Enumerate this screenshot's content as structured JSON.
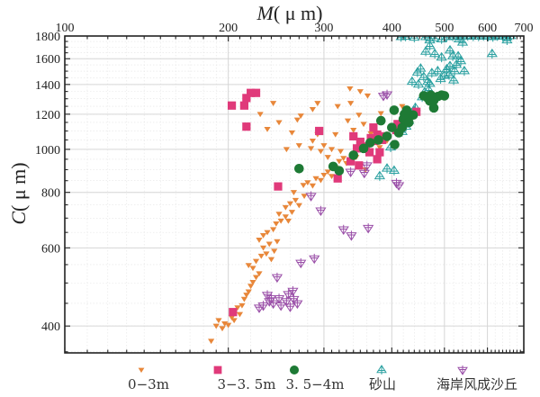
{
  "chart_data": {
    "type": "scatter",
    "title": "",
    "xlabel_italic": "M",
    "xlabel_unit": "( μ m)",
    "ylabel_italic": "C",
    "ylabel_unit": "( μ m)",
    "x_scale": "log",
    "y_scale": "log",
    "xlim": [
      100,
      700
    ],
    "ylim": [
      348,
      1800
    ],
    "x_ticks": [
      100,
      200,
      300,
      400,
      500,
      600,
      700
    ],
    "x_tick_labels": [
      "100",
      "200",
      "300",
      "400",
      "500",
      "600",
      "700"
    ],
    "y_ticks": [
      400,
      600,
      800,
      1000,
      1200,
      1400,
      1600,
      1800
    ],
    "y_tick_labels": [
      "400",
      "600",
      "800",
      "1000",
      "1200",
      "1400",
      "1600",
      "1800"
    ],
    "x_axis_position": "top",
    "grid": true,
    "legend_position": "bottom",
    "series": [
      {
        "name": "0-3m",
        "marker": "triangle-down",
        "color": "#e8873a",
        "points": [
          [
            186,
            370
          ],
          [
            190,
            400
          ],
          [
            192,
            412
          ],
          [
            195,
            395
          ],
          [
            197,
            405
          ],
          [
            200,
            402
          ],
          [
            203,
            418
          ],
          [
            205,
            412
          ],
          [
            210,
            425
          ],
          [
            208,
            440
          ],
          [
            212,
            445
          ],
          [
            214,
            460
          ],
          [
            216,
            470
          ],
          [
            218,
            478
          ],
          [
            220,
            492
          ],
          [
            222,
            502
          ],
          [
            225,
            515
          ],
          [
            228,
            525
          ],
          [
            222,
            540
          ],
          [
            218,
            548
          ],
          [
            225,
            560
          ],
          [
            230,
            575
          ],
          [
            235,
            582
          ],
          [
            240,
            565
          ],
          [
            232,
            600
          ],
          [
            238,
            612
          ],
          [
            243,
            590
          ],
          [
            246,
            620
          ],
          [
            228,
            625
          ],
          [
            232,
            640
          ],
          [
            236,
            650
          ],
          [
            242,
            660
          ],
          [
            245,
            680
          ],
          [
            250,
            690
          ],
          [
            255,
            705
          ],
          [
            258,
            690
          ],
          [
            248,
            715
          ],
          [
            262,
            722
          ],
          [
            255,
            740
          ],
          [
            260,
            755
          ],
          [
            266,
            768
          ],
          [
            270,
            748
          ],
          [
            276,
            785
          ],
          [
            264,
            800
          ],
          [
            275,
            830
          ],
          [
            280,
            842
          ],
          [
            286,
            828
          ],
          [
            290,
            860
          ],
          [
            296,
            852
          ],
          [
            300,
            875
          ],
          [
            305,
            890
          ],
          [
            310,
            870
          ],
          [
            315,
            910
          ],
          [
            320,
            940
          ],
          [
            326,
            955
          ],
          [
            330,
            930
          ],
          [
            305,
            960
          ],
          [
            296,
            990
          ],
          [
            310,
            1000
          ],
          [
            284,
            1005
          ],
          [
            286,
            1045
          ],
          [
            300,
            1020
          ],
          [
            292,
            1080
          ],
          [
            262,
            1090
          ],
          [
            236,
            1110
          ],
          [
            248,
            1150
          ],
          [
            272,
            1190
          ],
          [
            286,
            1230
          ],
          [
            242,
            1270
          ],
          [
            318,
            1250
          ],
          [
            336,
            1270
          ],
          [
            348,
            1195
          ],
          [
            366,
            1085
          ],
          [
            372,
            1050
          ],
          [
            380,
            1010
          ],
          [
            392,
            1045
          ],
          [
            404,
            1125
          ],
          [
            382,
            1205
          ],
          [
            335,
            1370
          ],
          [
            361,
            1320
          ],
          [
            418,
            1250
          ],
          [
            350,
            1350
          ],
          [
            344,
            960
          ],
          [
            358,
            900
          ],
          [
            322,
            990
          ],
          [
            270,
            1020
          ],
          [
            256,
            1000
          ],
          [
            229,
            1200
          ],
          [
            268,
            1165
          ],
          [
            292,
            1270
          ],
          [
            332,
            1160
          ],
          [
            315,
            1080
          ],
          [
            340,
            1105
          ],
          [
            355,
            1140
          ]
        ]
      },
      {
        "name": "3-3.5m",
        "marker": "square",
        "color": "#e03a7a",
        "points": [
          [
            204,
            430
          ],
          [
            247,
            825
          ],
          [
            216,
            1125
          ],
          [
            214,
            1255
          ],
          [
            203,
            1255
          ],
          [
            216,
            1305
          ],
          [
            220,
            1340
          ],
          [
            225,
            1340
          ],
          [
            294,
            1100
          ],
          [
            340,
            1070
          ],
          [
            350,
            1040
          ],
          [
            358,
            1015
          ],
          [
            366,
            1060
          ],
          [
            376,
            1080
          ],
          [
            384,
            1050
          ],
          [
            345,
            1005
          ],
          [
            364,
            985
          ],
          [
            380,
            985
          ],
          [
            376,
            950
          ],
          [
            336,
            940
          ],
          [
            318,
            860
          ],
          [
            348,
            920
          ],
          [
            370,
            1120
          ],
          [
            430,
            1190
          ],
          [
            444,
            1215
          ],
          [
            408,
            1105
          ],
          [
            410,
            1140
          ],
          [
            371,
            1045
          ],
          [
            386,
            1070
          ]
        ]
      },
      {
        "name": "3.5-4m",
        "marker": "circle",
        "color": "#1e7a35",
        "points": [
          [
            270,
            905
          ],
          [
            312,
            915
          ],
          [
            320,
            895
          ],
          [
            340,
            970
          ],
          [
            355,
            1005
          ],
          [
            365,
            1035
          ],
          [
            378,
            1050
          ],
          [
            392,
            1070
          ],
          [
            400,
            1120
          ],
          [
            405,
            1025
          ],
          [
            412,
            1090
          ],
          [
            418,
            1120
          ],
          [
            420,
            1170
          ],
          [
            425,
            1180
          ],
          [
            430,
            1150
          ],
          [
            438,
            1195
          ],
          [
            422,
            1200
          ],
          [
            426,
            1225
          ],
          [
            404,
            1225
          ],
          [
            458,
            1320
          ],
          [
            466,
            1305
          ],
          [
            472,
            1325
          ],
          [
            478,
            1290
          ],
          [
            486,
            1315
          ],
          [
            494,
            1325
          ],
          [
            500,
            1320
          ],
          [
            470,
            1285
          ],
          [
            478,
            1240
          ],
          [
            382,
            1160
          ]
        ]
      },
      {
        "name": "砂山",
        "marker": "triangle-up-cross",
        "color": "#2aa0a0",
        "points": [
          [
            380,
            870
          ],
          [
            392,
            905
          ],
          [
            404,
            895
          ],
          [
            398,
            1010
          ],
          [
            418,
            1095
          ],
          [
            425,
            1125
          ],
          [
            430,
            1160
          ],
          [
            440,
            1220
          ],
          [
            442,
            1240
          ],
          [
            455,
            1310
          ],
          [
            460,
            1345
          ],
          [
            468,
            1360
          ],
          [
            466,
            1420
          ],
          [
            470,
            1405
          ],
          [
            458,
            1455
          ],
          [
            474,
            1485
          ],
          [
            486,
            1500
          ],
          [
            492,
            1440
          ],
          [
            500,
            1465
          ],
          [
            505,
            1515
          ],
          [
            512,
            1540
          ],
          [
            522,
            1500
          ],
          [
            526,
            1550
          ],
          [
            530,
            1620
          ],
          [
            536,
            1580
          ],
          [
            518,
            1620
          ],
          [
            512,
            1670
          ],
          [
            494,
            1610
          ],
          [
            480,
            1640
          ],
          [
            470,
            1710
          ],
          [
            462,
            1660
          ],
          [
            470,
            1760
          ],
          [
            462,
            1790
          ],
          [
            416,
            1790
          ],
          [
            424,
            1795
          ],
          [
            440,
            1785
          ],
          [
            478,
            1780
          ],
          [
            494,
            1770
          ],
          [
            505,
            1790
          ],
          [
            518,
            1795
          ],
          [
            528,
            1800
          ],
          [
            540,
            1795
          ],
          [
            552,
            1800
          ],
          [
            565,
            1795
          ],
          [
            578,
            1795
          ],
          [
            590,
            1800
          ],
          [
            602,
            1795
          ],
          [
            614,
            1790
          ],
          [
            626,
            1800
          ],
          [
            640,
            1795
          ],
          [
            652,
            1790
          ],
          [
            662,
            1800
          ],
          [
            612,
            1640
          ],
          [
            652,
            1760
          ],
          [
            540,
            1740
          ],
          [
            532,
            1770
          ],
          [
            448,
            1400
          ],
          [
            436,
            1420
          ],
          [
            452,
            1520
          ],
          [
            446,
            1490
          ],
          [
            544,
            1500
          ],
          [
            520,
            1430
          ],
          [
            510,
            1470
          ]
        ]
      },
      {
        "name": "海岸风成沙丘",
        "marker": "triangle-down-cross",
        "color": "#9a4fa8",
        "points": [
          [
            228,
            440
          ],
          [
            232,
            445
          ],
          [
            238,
            455
          ],
          [
            242,
            450
          ],
          [
            248,
            462
          ],
          [
            250,
            445
          ],
          [
            256,
            455
          ],
          [
            260,
            442
          ],
          [
            264,
            460
          ],
          [
            268,
            450
          ],
          [
            236,
            470
          ],
          [
            240,
            462
          ],
          [
            258,
            472
          ],
          [
            263,
            480
          ],
          [
            246,
            515
          ],
          [
            272,
            555
          ],
          [
            288,
            568
          ],
          [
            326,
            660
          ],
          [
            337,
            640
          ],
          [
            362,
            665
          ],
          [
            296,
            728
          ],
          [
            284,
            785
          ],
          [
            336,
            890
          ],
          [
            356,
            885
          ],
          [
            360,
            920
          ],
          [
            408,
            840
          ],
          [
            412,
            830
          ],
          [
            392,
            1330
          ],
          [
            386,
            1320
          ]
        ]
      }
    ]
  }
}
